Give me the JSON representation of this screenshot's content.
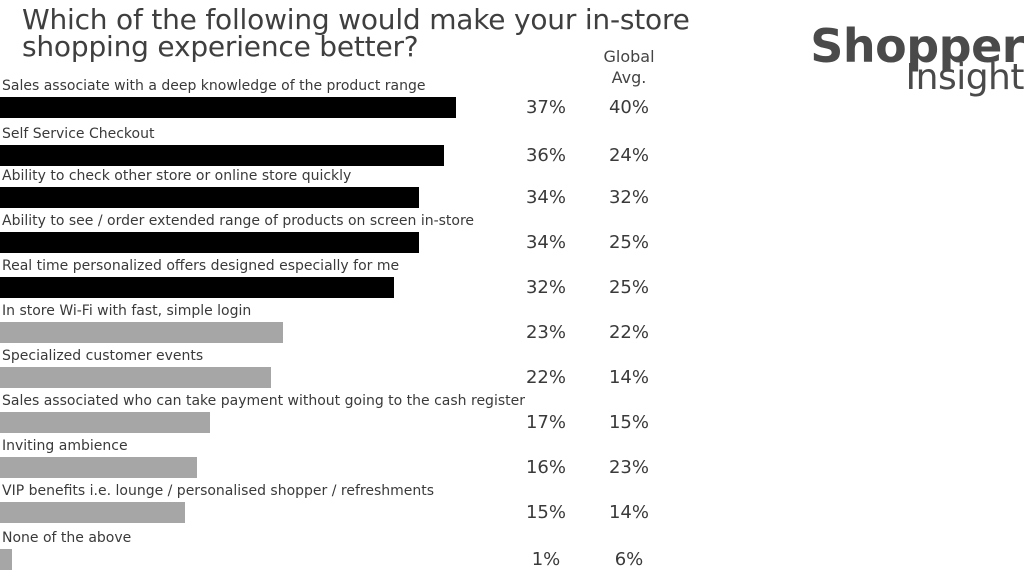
{
  "title": "Which of the following would make your in-store shopping experience better?",
  "global_header": "Global Avg.",
  "logo": {
    "line1": "Shopper",
    "line2": "Insight"
  },
  "colors": {
    "highlight": "#000000",
    "normal": "#a6a6a6"
  },
  "chart_data": {
    "type": "bar",
    "orientation": "horizontal",
    "title": "Which of the following would make your in-store shopping experience better?",
    "categories": [
      "Sales associate with a deep knowledge of the product range",
      "Self Service Checkout",
      "Ability to check other store or online store quickly",
      "Ability to see / order extended range of products on screen in-store",
      "Real time personalized offers designed especially for me",
      "In store Wi-Fi with fast, simple login",
      "Specialized customer events",
      "Sales associated who can take payment without going to the cash register",
      "Inviting ambience",
      "VIP benefits i.e.  lounge / personalised shopper / refreshments",
      "None of the above"
    ],
    "values": [
      37,
      36,
      34,
      34,
      32,
      23,
      22,
      17,
      16,
      15,
      1
    ],
    "value_labels": [
      "37%",
      "36%",
      "34%",
      "34%",
      "32%",
      "23%",
      "22%",
      "17%",
      "16%",
      "15%",
      "1%"
    ],
    "global_avg": [
      40,
      24,
      32,
      25,
      25,
      22,
      14,
      15,
      23,
      14,
      6
    ],
    "global_avg_labels": [
      "40%",
      "24%",
      "32%",
      "25%",
      "25%",
      "22%",
      "14%",
      "15%",
      "23%",
      "14%",
      "6%"
    ],
    "highlighted_count": 5,
    "xlim": [
      0,
      40
    ]
  }
}
